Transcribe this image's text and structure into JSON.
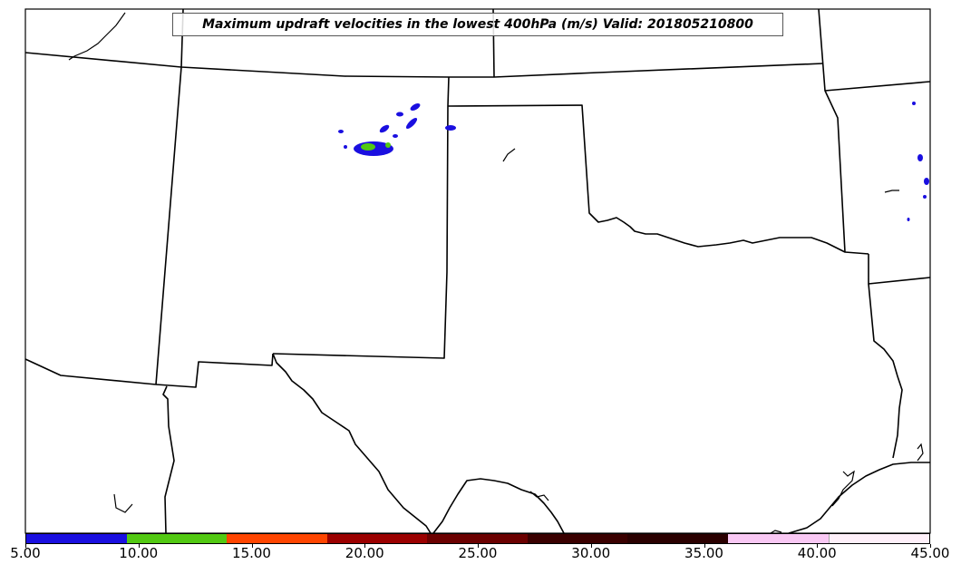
{
  "title": "Maximum updraft velocities in the lowest 400hPa (m/s) Valid: 201805210800",
  "colorbar": {
    "min": 5,
    "max": 45,
    "colors": [
      "#1a0fe0",
      "#52c912",
      "#ff4500",
      "#9b0000",
      "#6b0000",
      "#3a0000",
      "#2a0000",
      "#f9c8f4",
      "#fff0fa"
    ],
    "tick_labels": [
      "5.00",
      "10.00",
      "15.00",
      "20.00",
      "25.00",
      "30.00",
      "35.00",
      "40.00",
      "45.00"
    ]
  },
  "style": {
    "boundary_color": "#000000",
    "low_color": "#1a0fe0",
    "mid_color": "#52c912"
  }
}
